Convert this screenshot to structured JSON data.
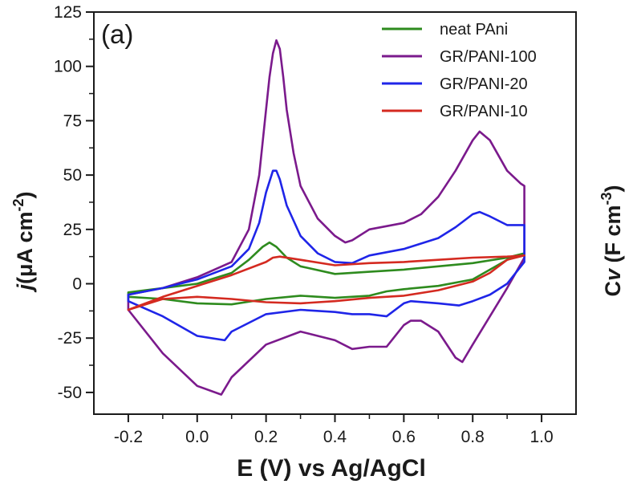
{
  "chart_data": {
    "type": "line",
    "panel_label": "(a)",
    "xlabel": "E (V) vs Ag/AgCl",
    "ylabel_left": {
      "italic": "j",
      "text": "(μA cm",
      "sup": "-2",
      "close": ")"
    },
    "ylabel_right": {
      "prefix": "C",
      "italic": "v",
      "text": " (F cm",
      "sup": "-3",
      "close": ")"
    },
    "xlim": [
      -0.3,
      1.1
    ],
    "ylim": [
      -60,
      125
    ],
    "xticks": [
      -0.2,
      0.0,
      0.2,
      0.4,
      0.6,
      0.8,
      1.0
    ],
    "xtick_labels": [
      "-0.2",
      "0.0",
      "0.2",
      "0.4",
      "0.6",
      "0.8",
      "1.0"
    ],
    "yticks": [
      -50,
      -25,
      0,
      25,
      50,
      75,
      100,
      125
    ],
    "ytick_labels": [
      "-50",
      "-25",
      "0",
      "25",
      "50",
      "75",
      "100",
      "125"
    ],
    "grid": false,
    "legend_position": "top-right",
    "series": [
      {
        "name": "neat PAni",
        "color": "#2e8b1e",
        "x": [
          -0.2,
          -0.1,
          0.0,
          0.1,
          0.15,
          0.19,
          0.21,
          0.23,
          0.26,
          0.3,
          0.4,
          0.5,
          0.6,
          0.7,
          0.8,
          0.9,
          0.95,
          0.9,
          0.8,
          0.7,
          0.6,
          0.55,
          0.5,
          0.4,
          0.3,
          0.2,
          0.1,
          0.0,
          -0.1,
          -0.2
        ],
        "y": [
          -4,
          -2,
          0,
          5,
          11,
          17,
          19,
          17,
          12,
          8,
          4.5,
          5.5,
          6.5,
          8,
          9.5,
          12,
          14,
          11,
          2,
          -1,
          -2.5,
          -3.5,
          -5.5,
          -6.5,
          -5.5,
          -7,
          -9.5,
          -9,
          -7,
          -6
        ]
      },
      {
        "name": "GR/PANI-100",
        "color": "#7b1a8c",
        "x": [
          -0.2,
          -0.1,
          0.0,
          0.1,
          0.15,
          0.18,
          0.2,
          0.21,
          0.22,
          0.23,
          0.24,
          0.25,
          0.26,
          0.28,
          0.3,
          0.35,
          0.4,
          0.43,
          0.45,
          0.5,
          0.6,
          0.65,
          0.7,
          0.75,
          0.8,
          0.82,
          0.85,
          0.9,
          0.94,
          0.95,
          0.95,
          0.9,
          0.85,
          0.8,
          0.77,
          0.75,
          0.7,
          0.65,
          0.62,
          0.6,
          0.57,
          0.55,
          0.5,
          0.45,
          0.4,
          0.3,
          0.2,
          0.1,
          0.07,
          0.0,
          -0.1,
          -0.2
        ],
        "y": [
          -5,
          -2,
          3,
          10,
          25,
          50,
          80,
          95,
          106,
          112,
          108,
          95,
          80,
          60,
          45,
          30,
          22,
          19,
          20,
          25,
          28,
          32,
          40,
          52,
          66,
          70,
          66,
          52,
          46,
          45,
          12,
          -2,
          -15,
          -28,
          -36,
          -34,
          -22,
          -17,
          -17,
          -19,
          -25,
          -29,
          -29,
          -30,
          -26,
          -22,
          -28,
          -43,
          -51,
          -47,
          -32,
          -12
        ]
      },
      {
        "name": "GR/PANI-20",
        "color": "#1f25e8",
        "x": [
          -0.2,
          -0.1,
          0.0,
          0.1,
          0.15,
          0.18,
          0.2,
          0.22,
          0.23,
          0.24,
          0.26,
          0.3,
          0.35,
          0.4,
          0.45,
          0.5,
          0.6,
          0.7,
          0.75,
          0.8,
          0.82,
          0.85,
          0.9,
          0.95,
          0.95,
          0.9,
          0.85,
          0.8,
          0.76,
          0.7,
          0.62,
          0.6,
          0.55,
          0.5,
          0.45,
          0.4,
          0.3,
          0.2,
          0.1,
          0.08,
          0.0,
          -0.1,
          -0.2
        ],
        "y": [
          -5,
          -2,
          2,
          8,
          16,
          28,
          42,
          52,
          52,
          48,
          36,
          22,
          14,
          10,
          9.5,
          13,
          16,
          21,
          26,
          32,
          33,
          31,
          27,
          27,
          10,
          0,
          -5,
          -8,
          -10,
          -9,
          -8,
          -9,
          -15,
          -14,
          -14,
          -13,
          -12,
          -14,
          -22,
          -26,
          -24,
          -15,
          -8
        ]
      },
      {
        "name": "GR/PANI-10",
        "color": "#d42a20",
        "x": [
          -0.2,
          -0.1,
          0.0,
          0.1,
          0.2,
          0.22,
          0.24,
          0.3,
          0.4,
          0.5,
          0.6,
          0.7,
          0.8,
          0.9,
          0.95,
          0.9,
          0.85,
          0.8,
          0.7,
          0.6,
          0.5,
          0.4,
          0.3,
          0.2,
          0.1,
          0.0,
          -0.1,
          -0.2
        ],
        "y": [
          -12,
          -6,
          -1,
          4,
          10,
          12,
          12.5,
          11,
          8.5,
          9.5,
          10,
          11,
          12,
          12.5,
          13,
          11,
          5,
          1,
          -3,
          -5.5,
          -6.5,
          -8,
          -9,
          -8.5,
          -7,
          -6,
          -7,
          -12
        ]
      }
    ]
  }
}
